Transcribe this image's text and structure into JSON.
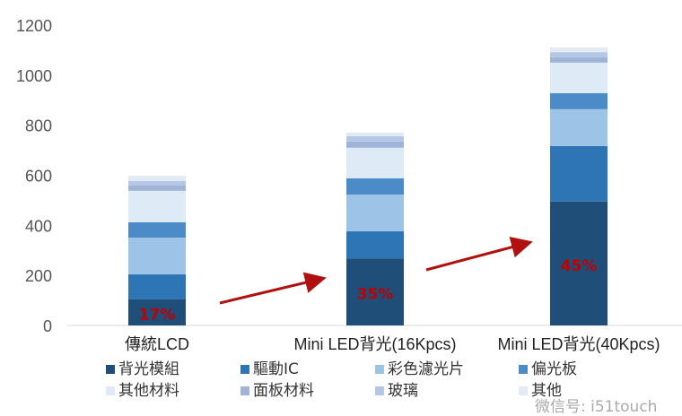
{
  "chart_data": {
    "type": "bar",
    "stacked": true,
    "categories": [
      "傳統LCD",
      "Mini LED背光(16Kpcs)",
      "Mini LED背光(40Kpcs)"
    ],
    "ylim": [
      0,
      1200
    ],
    "yticks": [
      0,
      200,
      400,
      600,
      800,
      1000,
      1200
    ],
    "grid": false,
    "legend_placement": "bottom",
    "series": [
      {
        "name": "背光模組",
        "color": "#1f4e79",
        "values": [
          104,
          268,
          495
        ]
      },
      {
        "name": "驅動IC",
        "color": "#2e75b6",
        "values": [
          100,
          108,
          222
        ]
      },
      {
        "name": "彩色濾光片",
        "color": "#9dc3e6",
        "values": [
          147,
          147,
          147
        ]
      },
      {
        "name": "偏光板",
        "color": "#4a8bc8",
        "values": [
          61,
          65,
          64
        ]
      },
      {
        "name": "其他材料",
        "color": "#deebf7",
        "values": [
          126,
          122,
          122
        ]
      },
      {
        "name": "面板材料",
        "color": "#9fb4d6",
        "values": [
          21,
          25,
          22
        ]
      },
      {
        "name": "玻璃",
        "color": "#b4c7e7",
        "values": [
          18,
          21,
          20
        ]
      },
      {
        "name": "其他",
        "color": "#e3eaf4",
        "values": [
          21,
          15,
          19
        ]
      }
    ],
    "annotations": [
      "17%",
      "35%",
      "45%"
    ],
    "annotation_color": "#c00000",
    "arrow_color": "#b01010"
  },
  "watermark": "微信号: i51touch"
}
